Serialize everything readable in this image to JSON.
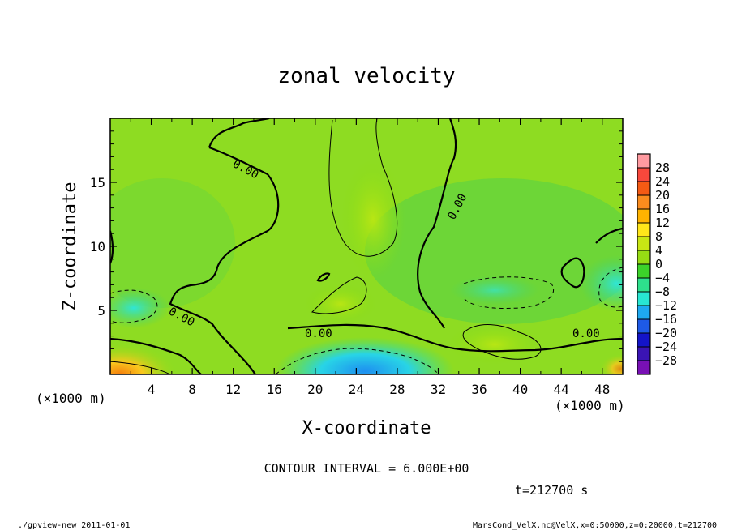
{
  "chart_data": {
    "type": "heatmap",
    "title": "zonal velocity",
    "xlabel": "X-coordinate",
    "ylabel": "Z-coordinate",
    "x_unit": "(×1000 m)",
    "y_unit": "(×1000 m)",
    "xlim": [
      0,
      50
    ],
    "ylim": [
      0,
      20
    ],
    "x_ticks": [
      "4",
      "8",
      "12",
      "16",
      "20",
      "24",
      "28",
      "32",
      "36",
      "40",
      "44",
      "48"
    ],
    "y_ticks": [
      "5",
      "10",
      "15"
    ],
    "colorbar": {
      "labels": [
        "28",
        "24",
        "20",
        "16",
        "12",
        "8",
        "4",
        "0",
        "−4",
        "−8",
        "−12",
        "−16",
        "−20",
        "−24",
        "−28"
      ],
      "colors": [
        "#ff9aa0",
        "#f8483c",
        "#f45a14",
        "#fa8c1e",
        "#ffb300",
        "#ffe61a",
        "#c8e614",
        "#96dc14",
        "#3cd22a",
        "#2ee08c",
        "#28e6d2",
        "#1ea8f0",
        "#1e5ae6",
        "#1414c8",
        "#3a14b4",
        "#7810b4"
      ]
    },
    "contour_labels": [
      "0.00",
      "0.00",
      "0.00",
      "0.00",
      "0.00"
    ],
    "contour_interval": "CONTOUR INTERVAL = 6.000E+00",
    "time": "t=212700 s",
    "footer_left": "./gpview-new  2011-01-01",
    "footer_right": "MarsCond_VelX.nc@VelX,x=0:50000,z=0:20000,t=212700"
  }
}
